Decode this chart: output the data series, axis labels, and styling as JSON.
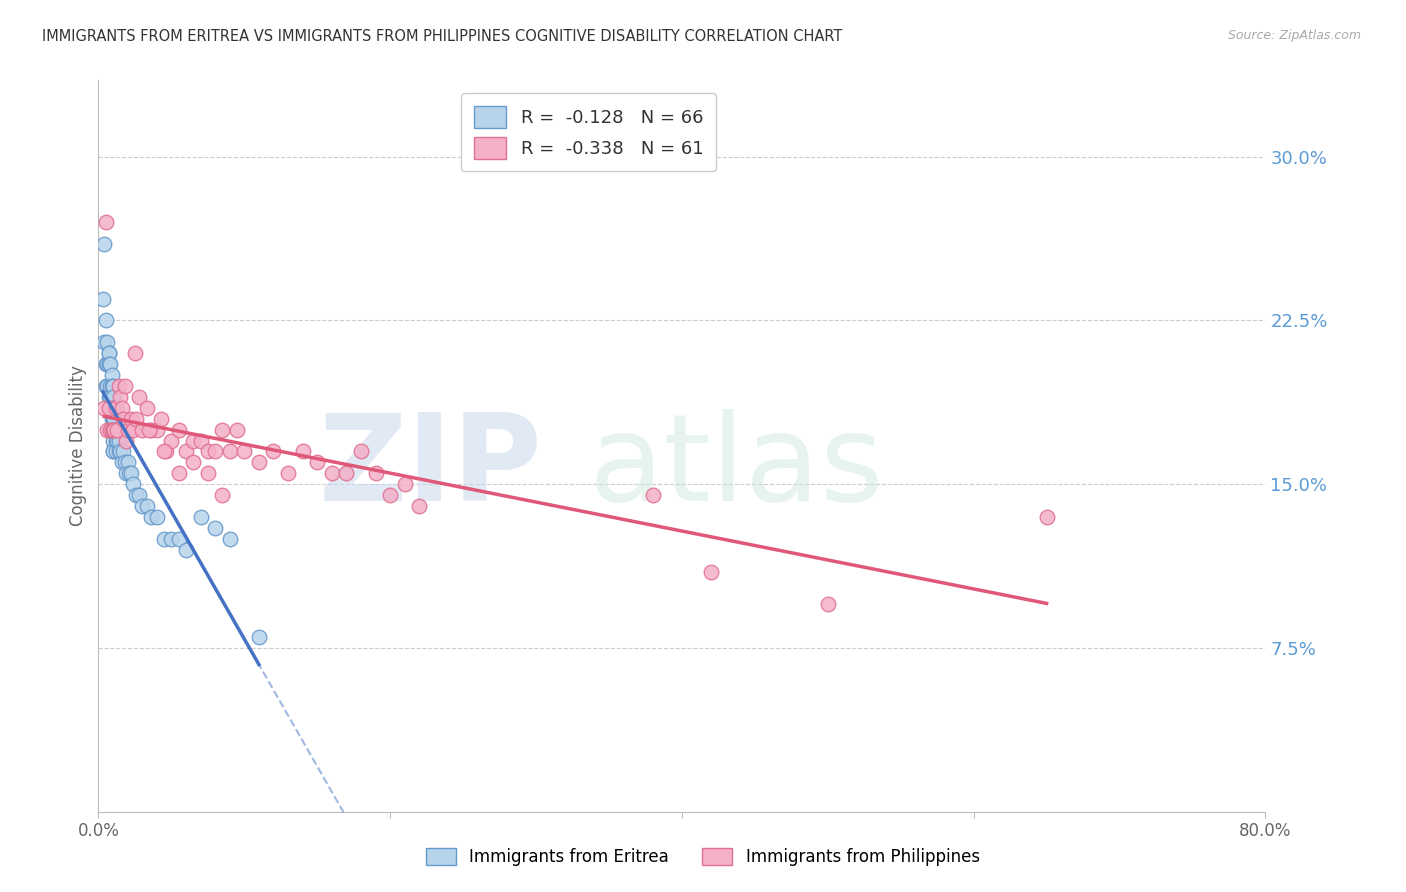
{
  "title": "IMMIGRANTS FROM ERITREA VS IMMIGRANTS FROM PHILIPPINES COGNITIVE DISABILITY CORRELATION CHART",
  "source_text": "Source: ZipAtlas.com",
  "ylabel": "Cognitive Disability",
  "right_ytick_labels": [
    "7.5%",
    "15.0%",
    "22.5%",
    "30.0%"
  ],
  "right_ytick_values": [
    0.075,
    0.15,
    0.225,
    0.3
  ],
  "xlim": [
    0.0,
    0.8
  ],
  "ylim": [
    0.0,
    0.335
  ],
  "legend_eritrea_r": "-0.128",
  "legend_eritrea_n": "66",
  "legend_philippines_r": "-0.338",
  "legend_philippines_n": "61",
  "color_eritrea_fill": "#b8d4ea",
  "color_eritrea_edge": "#6699cc",
  "color_eritrea_line": "#4472c4",
  "color_philippines_fill": "#f4b0c8",
  "color_philippines_edge": "#e07090",
  "color_philippines_line": "#e05878",
  "color_right_axis": "#5b9bd5",
  "eritrea_x": [
    0.003,
    0.004,
    0.004,
    0.005,
    0.005,
    0.005,
    0.006,
    0.006,
    0.006,
    0.007,
    0.007,
    0.007,
    0.007,
    0.008,
    0.008,
    0.008,
    0.008,
    0.008,
    0.009,
    0.009,
    0.009,
    0.009,
    0.009,
    0.009,
    0.01,
    0.01,
    0.01,
    0.01,
    0.01,
    0.01,
    0.01,
    0.01,
    0.011,
    0.011,
    0.011,
    0.012,
    0.012,
    0.012,
    0.013,
    0.013,
    0.014,
    0.014,
    0.015,
    0.015,
    0.016,
    0.017,
    0.018,
    0.019,
    0.02,
    0.021,
    0.022,
    0.024,
    0.026,
    0.028,
    0.03,
    0.033,
    0.036,
    0.04,
    0.045,
    0.05,
    0.055,
    0.06,
    0.07,
    0.08,
    0.09,
    0.11
  ],
  "eritrea_y": [
    0.235,
    0.215,
    0.26,
    0.205,
    0.225,
    0.195,
    0.215,
    0.205,
    0.195,
    0.21,
    0.21,
    0.205,
    0.19,
    0.205,
    0.195,
    0.19,
    0.185,
    0.175,
    0.2,
    0.195,
    0.185,
    0.185,
    0.18,
    0.175,
    0.195,
    0.19,
    0.185,
    0.18,
    0.175,
    0.17,
    0.165,
    0.165,
    0.185,
    0.18,
    0.175,
    0.175,
    0.17,
    0.165,
    0.175,
    0.17,
    0.165,
    0.17,
    0.165,
    0.175,
    0.16,
    0.165,
    0.16,
    0.155,
    0.16,
    0.155,
    0.155,
    0.15,
    0.145,
    0.145,
    0.14,
    0.14,
    0.135,
    0.135,
    0.125,
    0.125,
    0.125,
    0.12,
    0.135,
    0.13,
    0.125,
    0.08
  ],
  "philippines_x": [
    0.004,
    0.005,
    0.006,
    0.007,
    0.008,
    0.009,
    0.01,
    0.011,
    0.012,
    0.013,
    0.014,
    0.015,
    0.016,
    0.017,
    0.018,
    0.019,
    0.02,
    0.022,
    0.024,
    0.026,
    0.028,
    0.03,
    0.033,
    0.036,
    0.04,
    0.043,
    0.046,
    0.05,
    0.055,
    0.06,
    0.065,
    0.07,
    0.075,
    0.08,
    0.085,
    0.09,
    0.095,
    0.1,
    0.11,
    0.12,
    0.13,
    0.14,
    0.15,
    0.16,
    0.17,
    0.18,
    0.19,
    0.2,
    0.21,
    0.22,
    0.025,
    0.035,
    0.045,
    0.055,
    0.065,
    0.075,
    0.085,
    0.38,
    0.42,
    0.5,
    0.65
  ],
  "philippines_y": [
    0.185,
    0.27,
    0.175,
    0.185,
    0.175,
    0.175,
    0.175,
    0.175,
    0.185,
    0.175,
    0.195,
    0.19,
    0.185,
    0.18,
    0.195,
    0.17,
    0.175,
    0.18,
    0.175,
    0.18,
    0.19,
    0.175,
    0.185,
    0.175,
    0.175,
    0.18,
    0.165,
    0.17,
    0.175,
    0.165,
    0.17,
    0.17,
    0.165,
    0.165,
    0.175,
    0.165,
    0.175,
    0.165,
    0.16,
    0.165,
    0.155,
    0.165,
    0.16,
    0.155,
    0.155,
    0.165,
    0.155,
    0.145,
    0.15,
    0.14,
    0.21,
    0.175,
    0.165,
    0.155,
    0.16,
    0.155,
    0.145,
    0.145,
    0.11,
    0.095,
    0.135
  ]
}
